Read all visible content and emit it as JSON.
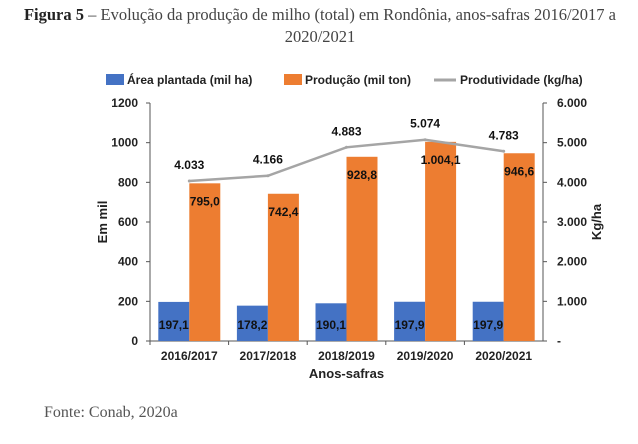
{
  "caption": {
    "label": "Figura 5",
    "text": " – Evolução da produção de milho (total) em Rondônia, anos-safras 2016/2017 a 2020/2021"
  },
  "source": "Fonte: Conab, 2020a",
  "chart_data": {
    "type": "bar",
    "categories": [
      "2016/2017",
      "2017/2018",
      "2018/2019",
      "2019/2020",
      "2020/2021"
    ],
    "series": [
      {
        "name": "Área plantada (mil ha)",
        "kind": "bar",
        "axis": "left",
        "color": "#4472C4",
        "values": [
          197.1,
          178.2,
          190.1,
          197.9,
          197.9
        ],
        "labels": [
          "197,1",
          "178,2",
          "190,1",
          "197,9",
          "197,9"
        ]
      },
      {
        "name": "Produção (mil ton)",
        "kind": "bar",
        "axis": "left",
        "color": "#ED7D31",
        "values": [
          795.0,
          742.4,
          928.8,
          1004.1,
          946.6
        ],
        "labels": [
          "795,0",
          "742,4",
          "928,8",
          "1.004,1",
          "946,6"
        ]
      },
      {
        "name": "Produtividade (kg/ha)",
        "kind": "line",
        "axis": "right",
        "color": "#A5A5A5",
        "values": [
          4033,
          4166,
          4883,
          5074,
          4783
        ],
        "labels": [
          "4.033",
          "4.166",
          "4.883",
          "5.074",
          "4.783"
        ]
      }
    ],
    "xlabel": "Anos-safras",
    "ylabel": "Em mil",
    "y2label": "Kg/ha",
    "ylim": [
      0,
      1200
    ],
    "y2lim": [
      0,
      6000
    ],
    "yticks": [
      0,
      200,
      400,
      600,
      800,
      1000,
      1200
    ],
    "yticklabels": [
      "0",
      "200",
      "400",
      "600",
      "800",
      "1000",
      "1200"
    ],
    "y2ticks": [
      0,
      1000,
      2000,
      3000,
      4000,
      5000,
      6000
    ],
    "y2ticklabels": [
      "-",
      "1.000",
      "2.000",
      "3.000",
      "4.000",
      "5.000",
      "6.000"
    ],
    "legend_position": "top",
    "grid": false
  }
}
